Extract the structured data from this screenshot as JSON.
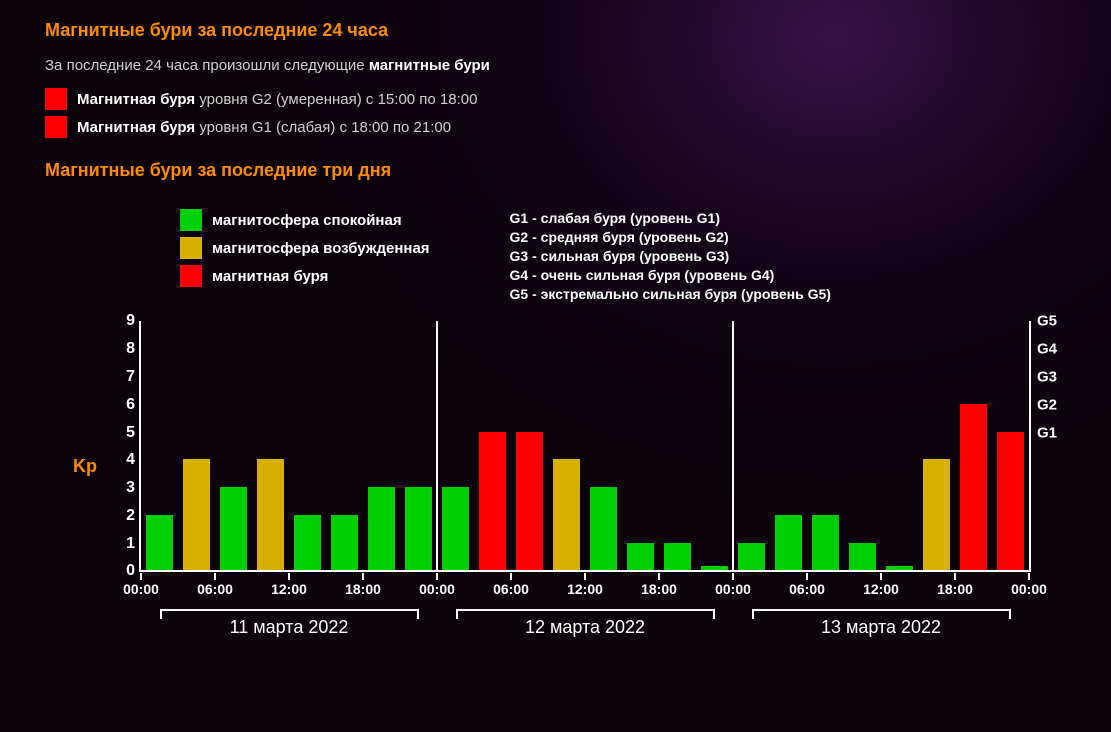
{
  "heading_24h": "Магнитные бури за последние 24 часа",
  "intro_prefix": "За последние 24 часа произошли следующие ",
  "intro_bold": "магнитные бури",
  "storms_24h": [
    {
      "color": "#ff0000",
      "bold": "Магнитная буря",
      "rest": " уровня G2 (умеренная) с 15:00 по 18:00"
    },
    {
      "color": "#ff0000",
      "bold": "Магнитная буря",
      "rest": " уровня G1 (слабая) с 18:00 по 21:00"
    }
  ],
  "heading_3d": "Магнитные бури за последние три дня",
  "legend_left": [
    {
      "color": "#00d000",
      "text": "магнитосфера спокойная"
    },
    {
      "color": "#d8b000",
      "text": "магнитосфера возбужденная"
    },
    {
      "color": "#ff0000",
      "text": "магнитная буря"
    }
  ],
  "legend_right": [
    "G1 - слабая буря (уровень G1)",
    "G2 - средняя буря (уровень G2)",
    "G3 - сильная буря (уровень G3)",
    "G4 - очень сильная буря (уровень G4)",
    "G5 - экстремально сильная буря (уровень G5)"
  ],
  "chart": {
    "type": "bar",
    "background_color": "#000000",
    "axis_color": "#ffffff",
    "kp_label": "Kp",
    "kp_label_color": "#ff8c00",
    "y_ticks": [
      0,
      1,
      2,
      3,
      4,
      5,
      6,
      7,
      8,
      9
    ],
    "ylim": [
      0,
      9
    ],
    "g_ticks": [
      {
        "v": 5,
        "label": "G1"
      },
      {
        "v": 6,
        "label": "G2"
      },
      {
        "v": 7,
        "label": "G3"
      },
      {
        "v": 8,
        "label": "G4"
      },
      {
        "v": 9,
        "label": "G5"
      }
    ],
    "x_tick_hours": [
      0,
      6,
      12,
      18,
      24,
      30,
      36,
      42,
      48,
      54,
      60,
      66,
      72
    ],
    "x_tick_labels": [
      "00:00",
      "06:00",
      "12:00",
      "18:00",
      "00:00",
      "06:00",
      "12:00",
      "18:00",
      "00:00",
      "06:00",
      "12:00",
      "18:00",
      "00:00"
    ],
    "total_hours": 72,
    "bar_width_hours": 2.2,
    "colors": {
      "green": "#00d000",
      "yellow": "#d8b000",
      "red": "#ff0000"
    },
    "bars": [
      {
        "h": 0,
        "v": 2,
        "c": "green"
      },
      {
        "h": 3,
        "v": 4,
        "c": "yellow"
      },
      {
        "h": 6,
        "v": 3,
        "c": "green"
      },
      {
        "h": 9,
        "v": 4,
        "c": "yellow"
      },
      {
        "h": 12,
        "v": 2,
        "c": "green"
      },
      {
        "h": 15,
        "v": 2,
        "c": "green"
      },
      {
        "h": 18,
        "v": 3,
        "c": "green"
      },
      {
        "h": 21,
        "v": 3,
        "c": "green"
      },
      {
        "h": 24,
        "v": 3,
        "c": "green"
      },
      {
        "h": 27,
        "v": 5,
        "c": "red"
      },
      {
        "h": 30,
        "v": 5,
        "c": "red"
      },
      {
        "h": 33,
        "v": 4,
        "c": "yellow"
      },
      {
        "h": 36,
        "v": 3,
        "c": "green"
      },
      {
        "h": 39,
        "v": 1,
        "c": "green"
      },
      {
        "h": 42,
        "v": 1,
        "c": "green"
      },
      {
        "h": 45,
        "v": 0.15,
        "c": "green"
      },
      {
        "h": 48,
        "v": 1,
        "c": "green"
      },
      {
        "h": 51,
        "v": 2,
        "c": "green"
      },
      {
        "h": 54,
        "v": 2,
        "c": "green"
      },
      {
        "h": 57,
        "v": 1,
        "c": "green"
      },
      {
        "h": 60,
        "v": 0.15,
        "c": "green"
      },
      {
        "h": 63,
        "v": 4,
        "c": "yellow"
      },
      {
        "h": 66,
        "v": 6,
        "c": "red"
      },
      {
        "h": 69,
        "v": 5,
        "c": "red"
      }
    ],
    "day_labels": [
      "11 марта 2022",
      "12 марта 2022",
      "13 марта 2022"
    ]
  }
}
